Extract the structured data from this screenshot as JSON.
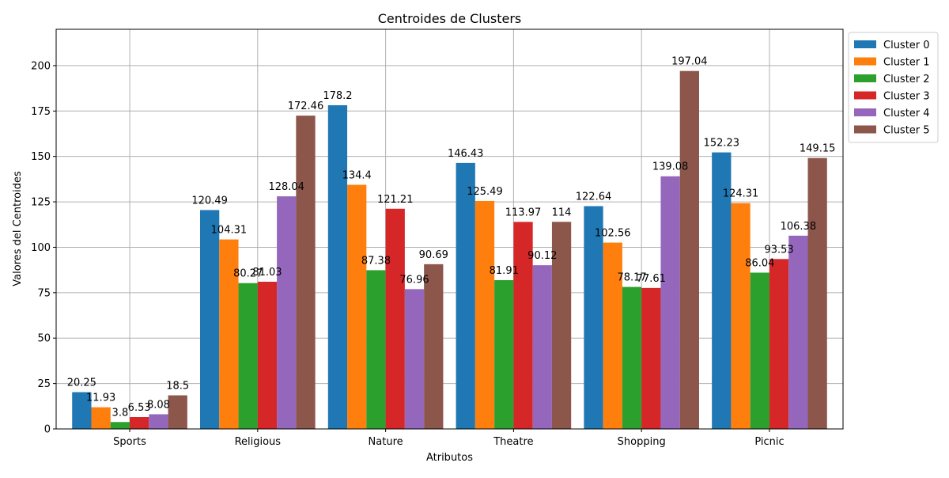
{
  "chart_data": {
    "type": "bar",
    "title": "Centroides de Clusters",
    "xlabel": "Atributos",
    "ylabel": "Valores del Centroides",
    "categories": [
      "Sports",
      "Religious",
      "Nature",
      "Theatre",
      "Shopping",
      "Picnic"
    ],
    "ylim": [
      0,
      220
    ],
    "yticks": [
      0,
      25,
      50,
      75,
      100,
      125,
      150,
      175,
      200
    ],
    "grid": true,
    "legend_position": "outside-top-right",
    "series": [
      {
        "name": "Cluster 0",
        "color": "#1f77b4",
        "values": [
          20.25,
          120.49,
          178.2,
          146.43,
          122.64,
          152.23
        ]
      },
      {
        "name": "Cluster 1",
        "color": "#ff7f0e",
        "values": [
          11.93,
          104.31,
          134.4,
          125.49,
          102.56,
          124.31
        ]
      },
      {
        "name": "Cluster 2",
        "color": "#2ca02c",
        "values": [
          3.8,
          80.27,
          87.38,
          81.91,
          78.17,
          86.04
        ]
      },
      {
        "name": "Cluster 3",
        "color": "#d62728",
        "values": [
          6.53,
          81.03,
          121.21,
          113.97,
          77.61,
          93.53
        ]
      },
      {
        "name": "Cluster 4",
        "color": "#9467bd",
        "values": [
          8.08,
          128.04,
          76.96,
          90.12,
          139.08,
          106.38
        ]
      },
      {
        "name": "Cluster 5",
        "color": "#8c564b",
        "values": [
          18.5,
          172.46,
          90.69,
          114.0,
          197.04,
          149.15
        ]
      }
    ]
  }
}
